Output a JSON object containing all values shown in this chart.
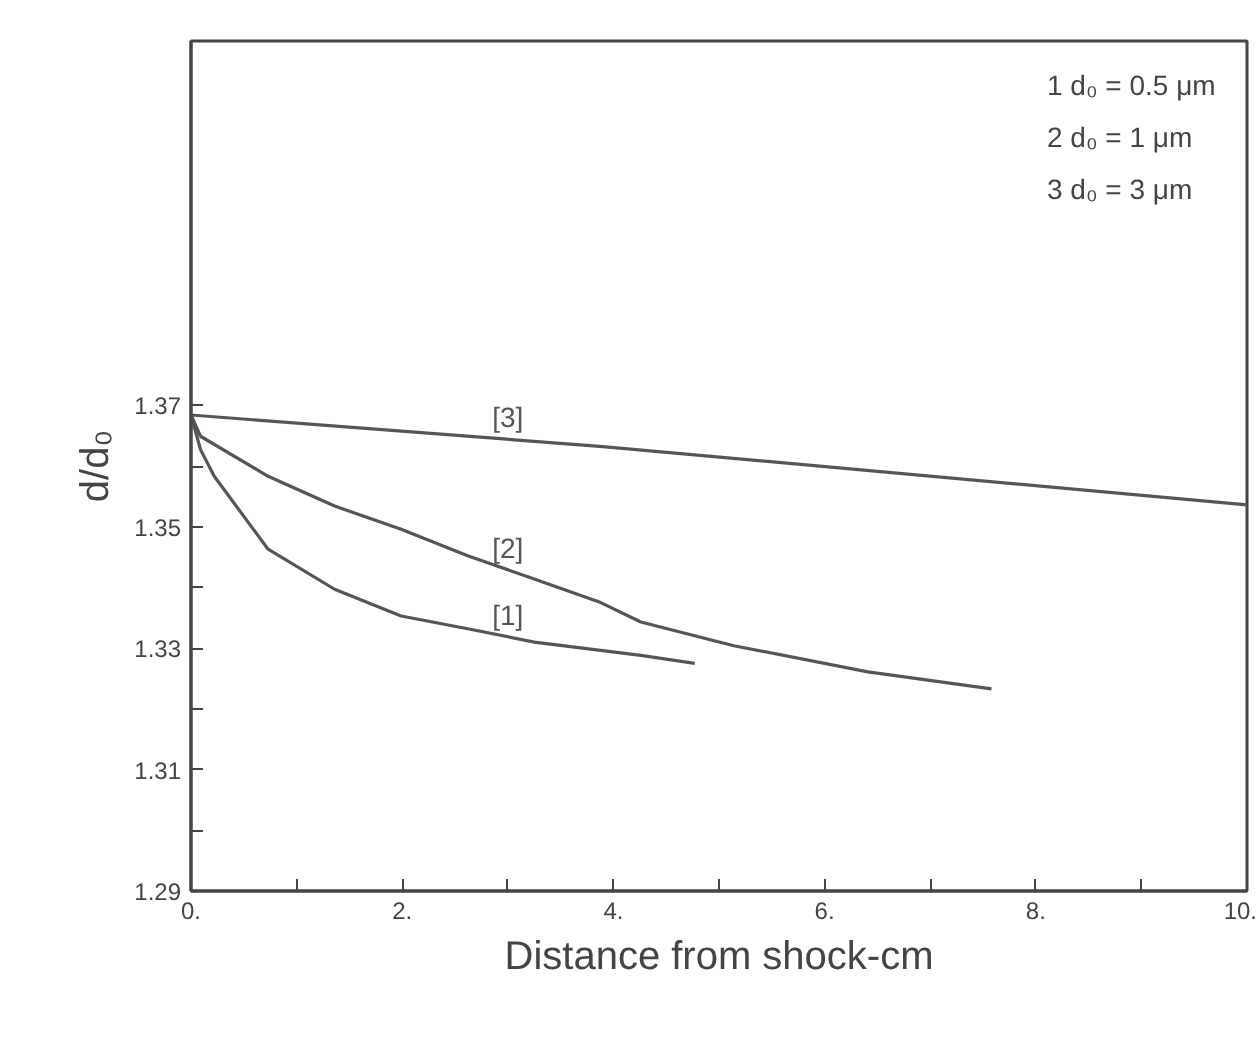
{
  "chart_data": {
    "type": "line",
    "xlabel": "Distance from shock-cm",
    "ylabel": "d/d₀",
    "xlim": [
      0,
      10
    ],
    "ylim": [
      1.29,
      1.43
    ],
    "xticks": [
      {
        "value": 0,
        "label": "0."
      },
      {
        "value": 1,
        "label": null
      },
      {
        "value": 2,
        "label": "2."
      },
      {
        "value": 3,
        "label": null
      },
      {
        "value": 4,
        "label": "4."
      },
      {
        "value": 5,
        "label": null
      },
      {
        "value": 6,
        "label": "6."
      },
      {
        "value": 7,
        "label": null
      },
      {
        "value": 8,
        "label": "8."
      },
      {
        "value": 9,
        "label": null
      },
      {
        "value": 10,
        "label": "10."
      }
    ],
    "yticks": [
      {
        "value": 1.29,
        "label": "1.29"
      },
      {
        "value": 1.3,
        "label": null
      },
      {
        "value": 1.31,
        "label": "1.31"
      },
      {
        "value": 1.32,
        "label": null
      },
      {
        "value": 1.33,
        "label": "1.33"
      },
      {
        "value": 1.34,
        "label": null
      },
      {
        "value": 1.35,
        "label": "1.35"
      },
      {
        "value": 1.36,
        "label": null
      },
      {
        "value": 1.37,
        "label": "1.37"
      }
    ],
    "grid": false,
    "marker": "none",
    "line_style": "solid",
    "series": [
      {
        "name": "[1]",
        "color": "#555555",
        "x": [
          0,
          0.09,
          0.22,
          0.73,
          1.36,
          1.99,
          2.62,
          3.25,
          4.26,
          4.77
        ],
        "values": [
          1.3684,
          1.3627,
          1.3583,
          1.3463,
          1.3397,
          1.3353,
          1.3332,
          1.331,
          1.3288,
          1.3275
        ]
      },
      {
        "name": "[2]",
        "color": "#555555",
        "x": [
          0,
          0.09,
          0.73,
          1.36,
          1.99,
          2.62,
          3.25,
          3.88,
          4.26,
          5.14,
          6.41,
          7.58
        ],
        "values": [
          1.3684,
          1.3649,
          1.3583,
          1.3534,
          1.3496,
          1.3452,
          1.3414,
          1.3375,
          1.3343,
          1.3304,
          1.3261,
          1.3233
        ]
      },
      {
        "name": "[3]",
        "color": "#555555",
        "x": [
          0,
          3.9,
          10
        ],
        "values": [
          1.3684,
          1.3632,
          1.3536
        ]
      }
    ],
    "annotations": [
      "1  d₀ = 0.5 μm",
      "2  d₀ = 1    μm",
      "3  d₀ = 3    μm"
    ]
  }
}
